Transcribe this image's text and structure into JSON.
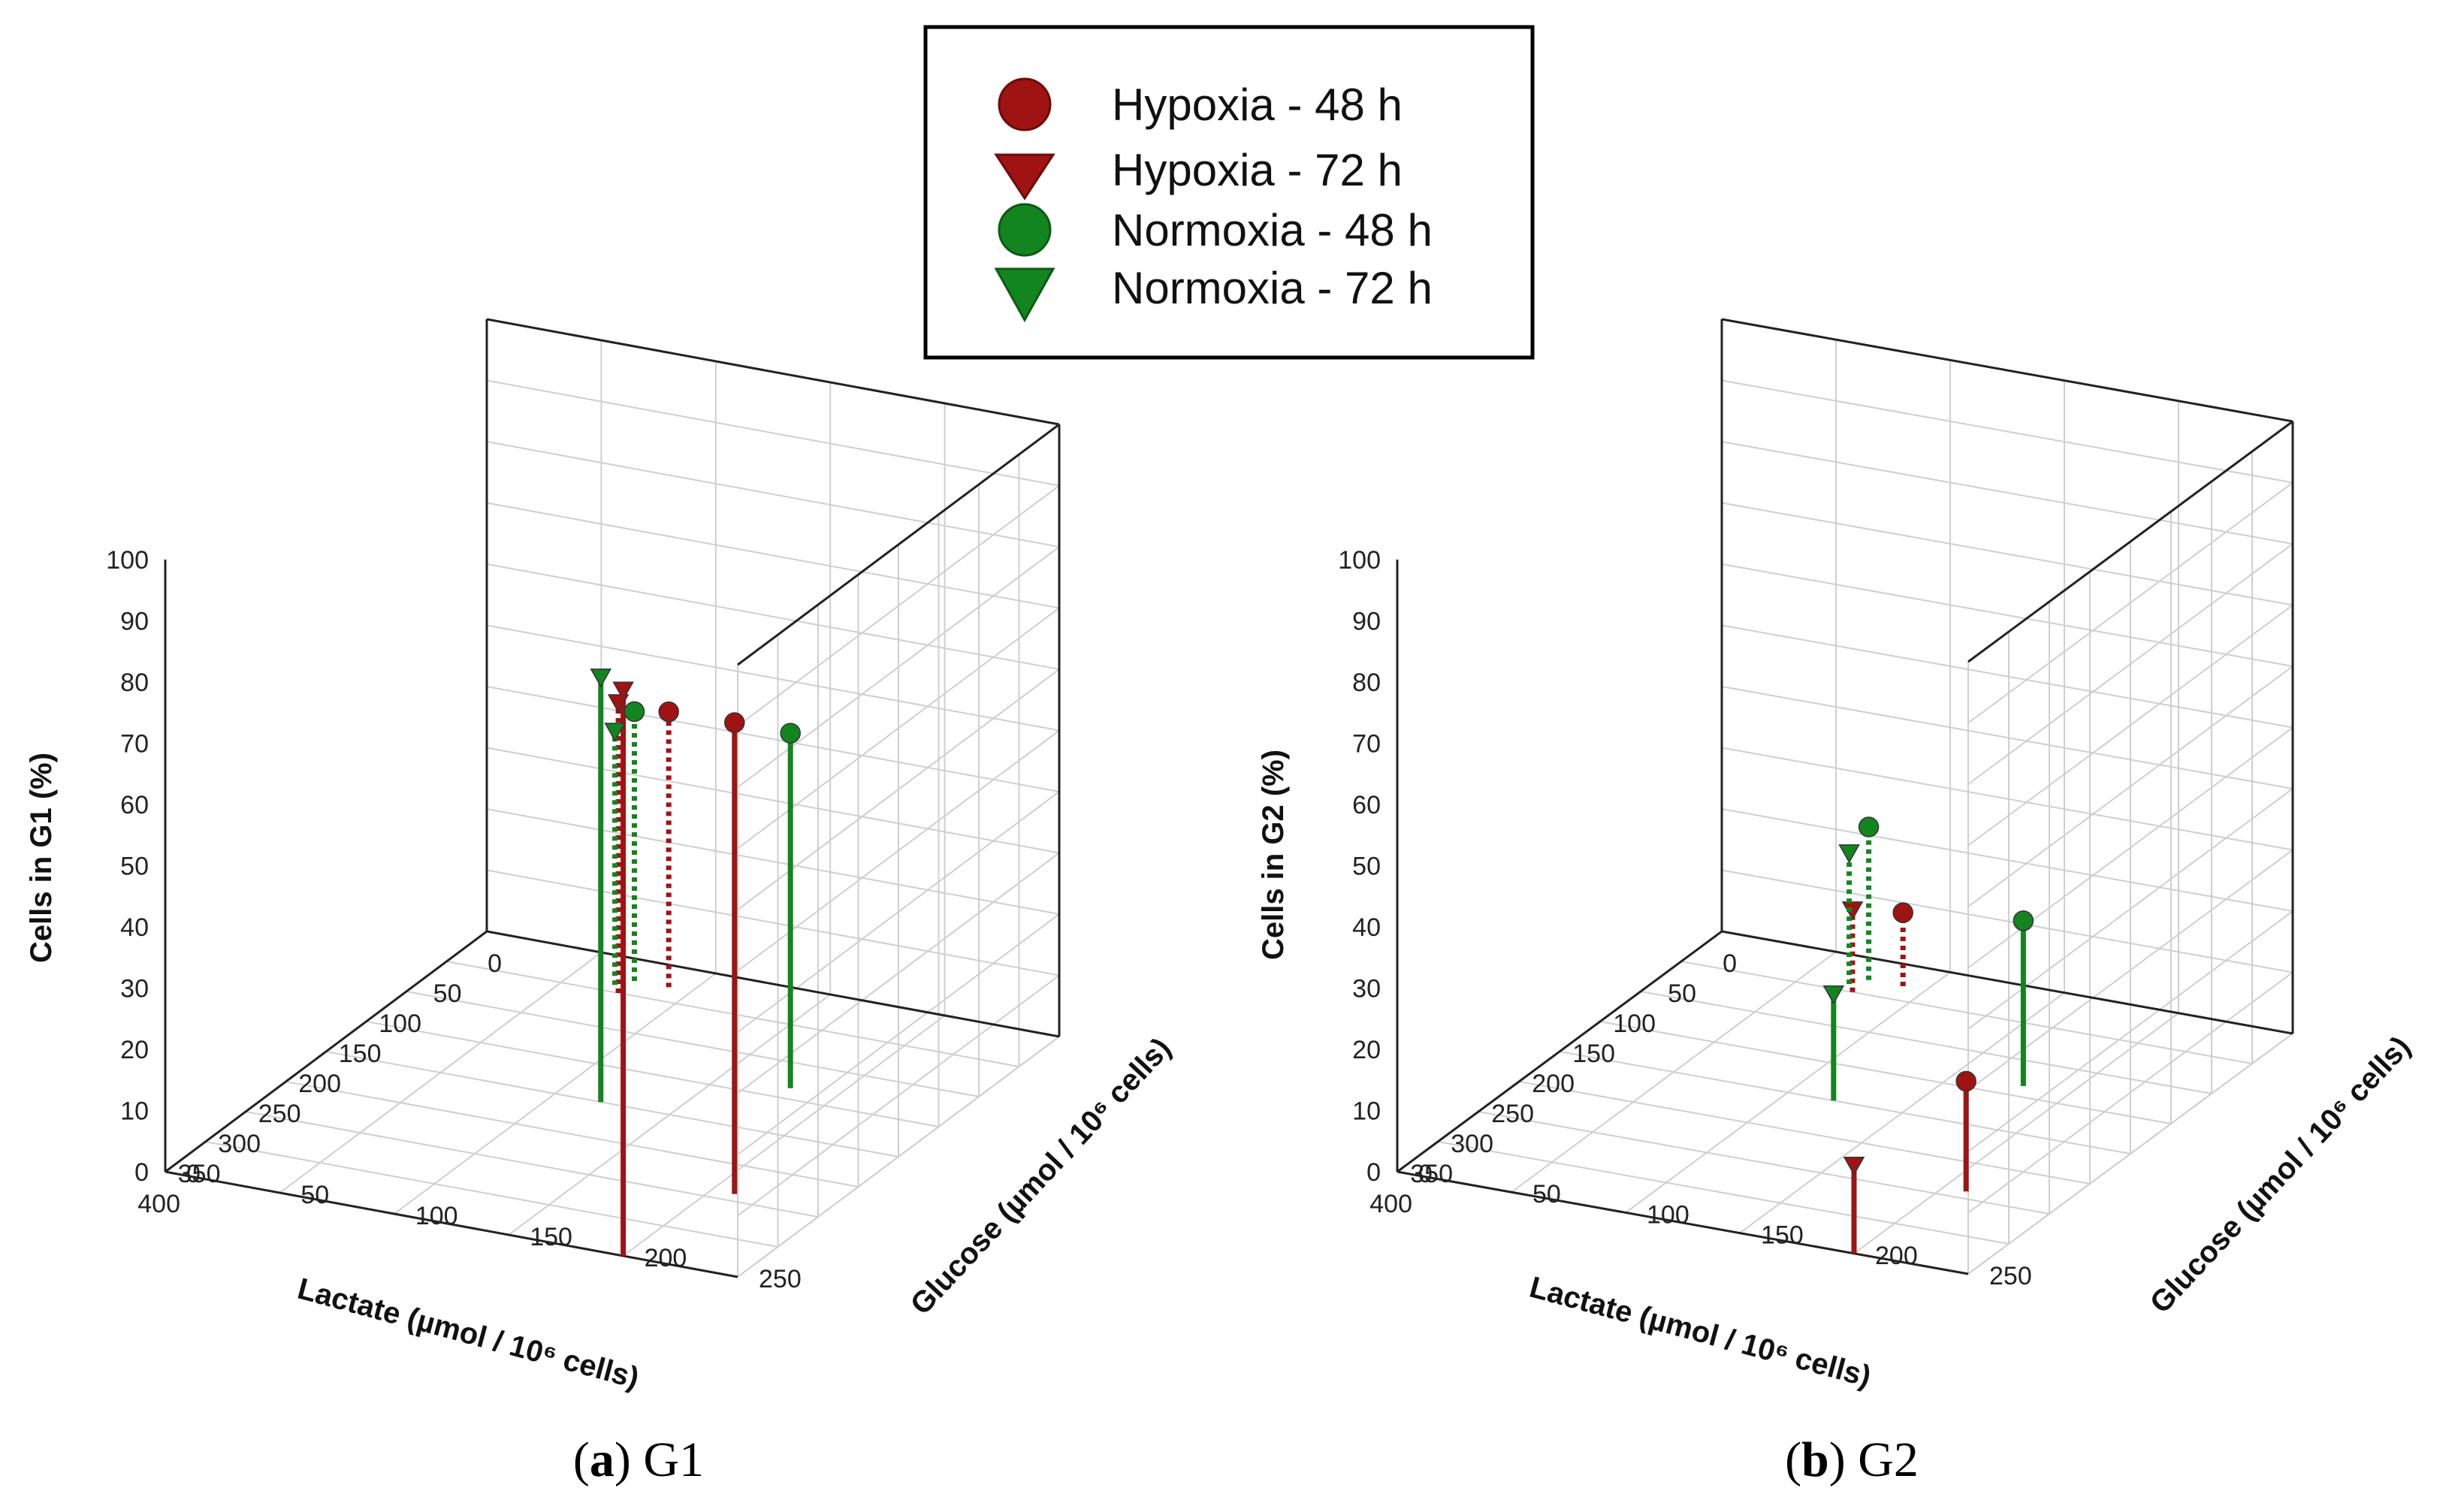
{
  "legend": {
    "items": [
      {
        "label": "Hypoxia - 48 h",
        "color": "#a01313",
        "marker": "circle"
      },
      {
        "label": "Hypoxia - 72 h",
        "color": "#a01313",
        "marker": "triangle-down"
      },
      {
        "label": "Normoxia - 48 h",
        "color": "#13851f",
        "marker": "circle"
      },
      {
        "label": "Normoxia - 72 h",
        "color": "#13851f",
        "marker": "triangle-down"
      }
    ]
  },
  "chart_data": [
    {
      "type": "scatter3d-stem",
      "panel": "a",
      "caption_letter": "a",
      "caption_name": "G1",
      "xlabel": "Lactate (µmol / 10⁶ cells)",
      "ylabel": "Glucose (µmol / 10⁶ cells)",
      "zlabel": "Cells in G1 (%)",
      "xlim": [
        0,
        400
      ],
      "ylim": [
        0,
        250
      ],
      "zlim": [
        0,
        100
      ],
      "xticks": [
        0,
        50,
        100,
        150,
        200,
        250,
        300,
        350,
        400
      ],
      "yticks": [
        0,
        50,
        100,
        150,
        200,
        250
      ],
      "zticks": [
        0,
        10,
        20,
        30,
        40,
        50,
        60,
        70,
        80,
        90,
        100
      ],
      "series": [
        {
          "name": "Hypoxia - 48 h",
          "color": "#a01313",
          "marker": "circle",
          "points": [
            {
              "x": 290,
              "y": 210,
              "z": 77,
              "style": "solid"
            },
            {
              "x": 30,
              "y": 90,
              "z": 45,
              "style": "dotted"
            }
          ]
        },
        {
          "name": "Hypoxia - 72 h",
          "color": "#a01313",
          "marker": "triangle-down",
          "points": [
            {
              "x": 400,
              "y": 200,
              "z": 92,
              "style": "solid"
            },
            {
              "x": 50,
              "y": 75,
              "z": 47,
              "style": "dotted"
            }
          ]
        },
        {
          "name": "Normoxia - 48 h",
          "color": "#13851f",
          "marker": "circle",
          "points": [
            {
              "x": 135,
              "y": 180,
              "z": 58,
              "style": "solid"
            },
            {
              "x": 30,
              "y": 75,
              "z": 44,
              "style": "dotted"
            }
          ]
        },
        {
          "name": "Normoxia - 72 h",
          "color": "#13851f",
          "marker": "triangle-down",
          "points": [
            {
              "x": 200,
              "y": 120,
              "z": 69,
              "style": "solid"
            },
            {
              "x": 40,
              "y": 70,
              "z": 41,
              "style": "dotted"
            }
          ]
        }
      ]
    },
    {
      "type": "scatter3d-stem",
      "panel": "b",
      "caption_letter": "b",
      "caption_name": "G2",
      "xlabel": "Lactate (µmol / 10⁶ cells)",
      "ylabel": "Glucose (µmol / 10⁶ cells)",
      "zlabel": "Cells in G2 (%)",
      "xlim": [
        0,
        400
      ],
      "ylim": [
        0,
        250
      ],
      "zlim": [
        0,
        100
      ],
      "xticks": [
        0,
        50,
        100,
        150,
        200,
        250,
        300,
        350,
        400
      ],
      "yticks": [
        0,
        50,
        100,
        150,
        200,
        250
      ],
      "zticks": [
        0,
        10,
        20,
        30,
        40,
        50,
        60,
        70,
        80,
        90,
        100
      ],
      "series": [
        {
          "name": "Hypoxia - 48 h",
          "color": "#a01313",
          "marker": "circle",
          "points": [
            {
              "x": 290,
              "y": 210,
              "z": 18,
              "style": "solid"
            },
            {
              "x": 30,
              "y": 90,
              "z": 12,
              "style": "dotted"
            }
          ]
        },
        {
          "name": "Hypoxia - 72 h",
          "color": "#a01313",
          "marker": "triangle-down",
          "points": [
            {
              "x": 400,
              "y": 200,
              "z": 14,
              "style": "solid"
            },
            {
              "x": 50,
              "y": 75,
              "z": 13,
              "style": "dotted"
            }
          ]
        },
        {
          "name": "Normoxia - 48 h",
          "color": "#13851f",
          "marker": "circle",
          "points": [
            {
              "x": 135,
              "y": 180,
              "z": 27,
              "style": "solid"
            },
            {
              "x": 30,
              "y": 75,
              "z": 25,
              "style": "dotted"
            }
          ]
        },
        {
          "name": "Normoxia - 72 h",
          "color": "#13851f",
          "marker": "triangle-down",
          "points": [
            {
              "x": 200,
              "y": 120,
              "z": 17,
              "style": "solid"
            },
            {
              "x": 40,
              "y": 70,
              "z": 21,
              "style": "dotted"
            }
          ]
        }
      ]
    }
  ]
}
